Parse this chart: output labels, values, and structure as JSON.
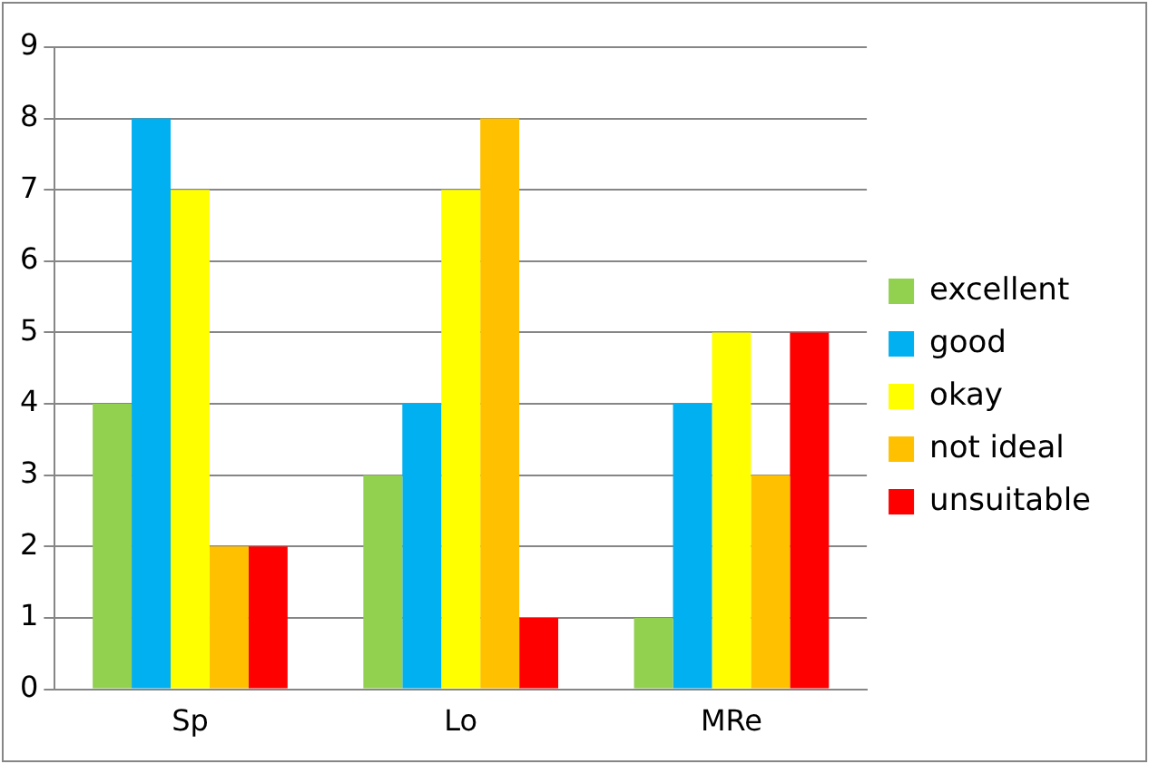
{
  "chart_data": {
    "type": "bar",
    "categories": [
      "Sp",
      "Lo",
      "MRe"
    ],
    "series": [
      {
        "name": "excellent",
        "color": "#92d050",
        "values": [
          4,
          3,
          1
        ]
      },
      {
        "name": "good",
        "color": "#00b0f0",
        "values": [
          8,
          4,
          4
        ]
      },
      {
        "name": "okay",
        "color": "#ffff00",
        "values": [
          7,
          7,
          5
        ]
      },
      {
        "name": "not ideal",
        "color": "#ffc000",
        "values": [
          2,
          8,
          3
        ]
      },
      {
        "name": "unsuitable",
        "color": "#ff0000",
        "values": [
          2,
          1,
          5
        ]
      }
    ],
    "ylim": [
      0,
      9
    ],
    "yticks": [
      0,
      1,
      2,
      3,
      4,
      5,
      6,
      7,
      8,
      9
    ],
    "grid": "y",
    "legend": "right"
  }
}
